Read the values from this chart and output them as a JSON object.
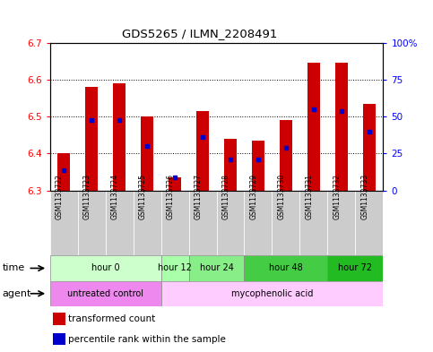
{
  "title": "GDS5265 / ILMN_2208491",
  "samples": [
    "GSM1133722",
    "GSM1133723",
    "GSM1133724",
    "GSM1133725",
    "GSM1133726",
    "GSM1133727",
    "GSM1133728",
    "GSM1133729",
    "GSM1133730",
    "GSM1133731",
    "GSM1133732",
    "GSM1133733"
  ],
  "bar_bottoms": [
    6.3,
    6.3,
    6.3,
    6.3,
    6.3,
    6.3,
    6.3,
    6.3,
    6.3,
    6.3,
    6.3,
    6.3
  ],
  "bar_tops": [
    6.4,
    6.58,
    6.59,
    6.5,
    6.335,
    6.515,
    6.44,
    6.435,
    6.49,
    6.645,
    6.645,
    6.535
  ],
  "percentile_values": [
    6.355,
    6.49,
    6.49,
    6.42,
    6.335,
    6.445,
    6.385,
    6.385,
    6.415,
    6.52,
    6.515,
    6.46
  ],
  "ylim": [
    6.3,
    6.7
  ],
  "yticks_left": [
    6.3,
    6.4,
    6.5,
    6.6,
    6.7
  ],
  "yticks_right": [
    0,
    25,
    50,
    75,
    100
  ],
  "yticks_right_labels": [
    "0",
    "25",
    "50",
    "75",
    "100%"
  ],
  "bar_color": "#cc0000",
  "percentile_color": "#0000cc",
  "time_groups": [
    {
      "label": "hour 0",
      "start": 0,
      "end": 3,
      "color": "#ccffcc"
    },
    {
      "label": "hour 12",
      "start": 4,
      "end": 4,
      "color": "#aaffaa"
    },
    {
      "label": "hour 24",
      "start": 5,
      "end": 6,
      "color": "#88ee88"
    },
    {
      "label": "hour 48",
      "start": 7,
      "end": 9,
      "color": "#44cc44"
    },
    {
      "label": "hour 72",
      "start": 10,
      "end": 11,
      "color": "#22bb22"
    }
  ],
  "agent_groups": [
    {
      "label": "untreated control",
      "start": 0,
      "end": 3,
      "color": "#ee88ee"
    },
    {
      "label": "mycophenolic acid",
      "start": 4,
      "end": 11,
      "color": "#ffccff"
    }
  ],
  "legend_items": [
    {
      "label": "transformed count",
      "color": "#cc0000"
    },
    {
      "label": "percentile rank within the sample",
      "color": "#0000cc"
    }
  ],
  "time_label": "time",
  "agent_label": "agent",
  "sample_box_color": "#cccccc"
}
